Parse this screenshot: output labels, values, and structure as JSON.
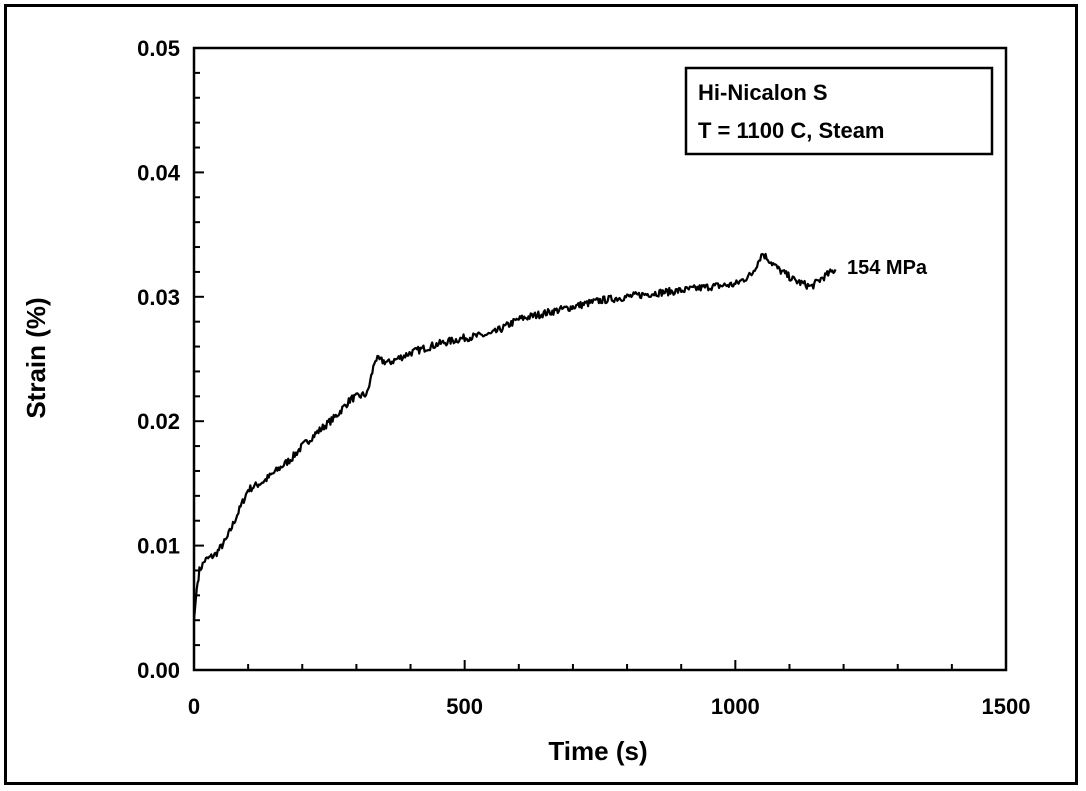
{
  "chart_data": {
    "type": "line",
    "xlabel": "Time (s)",
    "ylabel": "Strain (%)",
    "xlim": [
      0,
      1500
    ],
    "ylim": [
      0,
      0.05
    ],
    "x_ticks": [
      "0",
      "500",
      "1000",
      "1500"
    ],
    "y_ticks": [
      "0.00",
      "0.01",
      "0.02",
      "0.03",
      "0.04",
      "0.05"
    ],
    "legend": {
      "placement": "top-right",
      "lines": [
        "Hi-Nicalon S",
        "T = 1100  C, Steam"
      ]
    },
    "series": [
      {
        "label": "154 MPa",
        "color": "#000000",
        "points": [
          [
            0,
            0.004
          ],
          [
            5,
            0.0065
          ],
          [
            10,
            0.008
          ],
          [
            20,
            0.0088
          ],
          [
            40,
            0.0093
          ],
          [
            60,
            0.0105
          ],
          [
            80,
            0.0125
          ],
          [
            100,
            0.0145
          ],
          [
            130,
            0.0152
          ],
          [
            160,
            0.0163
          ],
          [
            180,
            0.017
          ],
          [
            200,
            0.018
          ],
          [
            230,
            0.0192
          ],
          [
            260,
            0.0203
          ],
          [
            290,
            0.0218
          ],
          [
            320,
            0.0222
          ],
          [
            335,
            0.025
          ],
          [
            360,
            0.0247
          ],
          [
            400,
            0.0255
          ],
          [
            450,
            0.0262
          ],
          [
            500,
            0.0267
          ],
          [
            550,
            0.027
          ],
          [
            600,
            0.0282
          ],
          [
            650,
            0.0287
          ],
          [
            700,
            0.0292
          ],
          [
            750,
            0.0297
          ],
          [
            800,
            0.03
          ],
          [
            850,
            0.0303
          ],
          [
            900,
            0.0305
          ],
          [
            950,
            0.0308
          ],
          [
            1000,
            0.031
          ],
          [
            1030,
            0.0318
          ],
          [
            1050,
            0.0335
          ],
          [
            1080,
            0.0322
          ],
          [
            1110,
            0.0313
          ],
          [
            1140,
            0.0308
          ],
          [
            1160,
            0.0315
          ],
          [
            1185,
            0.0322
          ]
        ]
      }
    ]
  }
}
